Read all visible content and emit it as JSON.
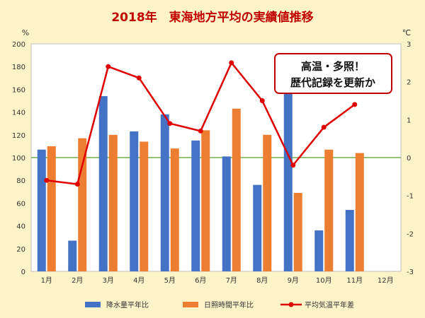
{
  "chart_data": {
    "type": "bar",
    "title": "2018年　東海地方平均の実績値推移",
    "categories": [
      "1月",
      "2月",
      "3月",
      "4月",
      "5月",
      "6月",
      "7月",
      "8月",
      "9月",
      "10月",
      "11月",
      "12月"
    ],
    "y_left": {
      "unit": "%",
      "range": [
        0,
        200
      ],
      "ticks": [
        0,
        20,
        40,
        60,
        80,
        100,
        120,
        140,
        160,
        180,
        200
      ]
    },
    "y_right": {
      "unit": "℃",
      "range": [
        -3,
        3
      ],
      "ticks": [
        -3,
        -2,
        -1,
        0,
        1,
        2,
        3
      ]
    },
    "reference_line": {
      "value": 100,
      "axis": "left",
      "color": "#70ad47"
    },
    "series": [
      {
        "name": "降水量平年比",
        "kind": "bar",
        "axis": "left",
        "color": "#4472c4",
        "values": [
          107,
          27,
          154,
          123,
          138,
          115,
          101,
          76,
          160,
          36,
          54,
          null
        ]
      },
      {
        "name": "日照時間平年比",
        "kind": "bar",
        "axis": "left",
        "color": "#ed7d31",
        "values": [
          110,
          117,
          120,
          114,
          108,
          124,
          143,
          120,
          69,
          107,
          104,
          null
        ]
      },
      {
        "name": "平均気温平年差",
        "kind": "line",
        "axis": "right",
        "color": "#e00000",
        "values": [
          -0.6,
          -0.7,
          2.4,
          2.1,
          0.9,
          0.7,
          2.5,
          1.5,
          -0.2,
          0.8,
          1.4,
          null
        ]
      }
    ],
    "annotation": {
      "lines": [
        "高温・多照！",
        "歴代記録を更新か"
      ]
    },
    "legend": "bottom",
    "grid": false
  }
}
